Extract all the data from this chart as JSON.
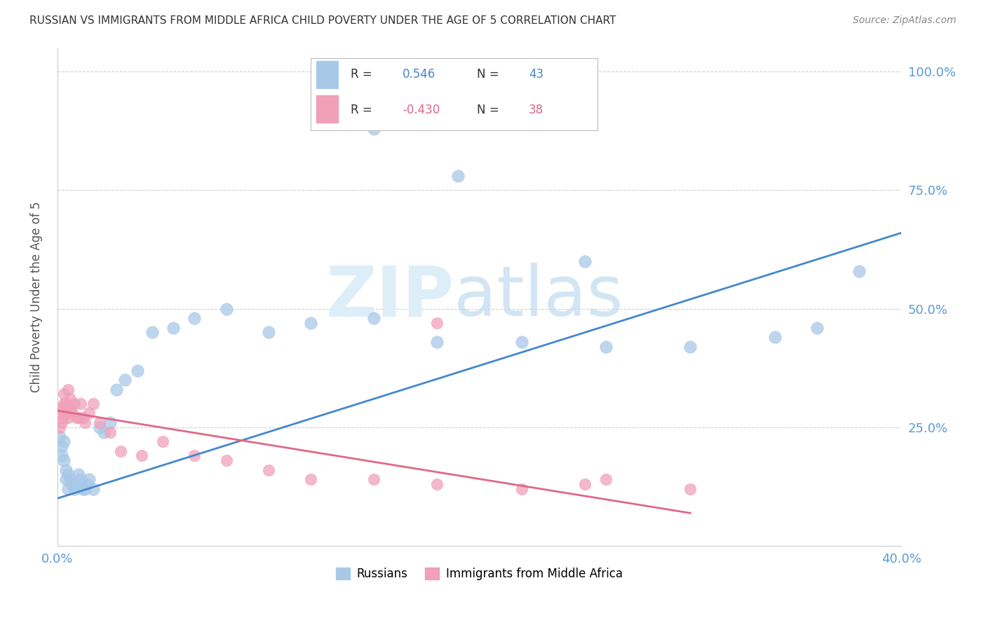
{
  "title": "RUSSIAN VS IMMIGRANTS FROM MIDDLE AFRICA CHILD POVERTY UNDER THE AGE OF 5 CORRELATION CHART",
  "source": "Source: ZipAtlas.com",
  "ylabel": "Child Poverty Under the Age of 5",
  "legend_russian_r": "0.546",
  "legend_russian_n": "43",
  "legend_immigrant_r": "-0.430",
  "legend_immigrant_n": "38",
  "blue_color": "#a8c8e8",
  "pink_color": "#f0a0b8",
  "blue_line_color": "#4488cc",
  "pink_line_color": "#e06888",
  "background": "#ffffff",
  "grid_color": "#cccccc",
  "axis_label_color": "#5b9bd5",
  "title_color": "#333333",
  "russians_x": [
    0.001,
    0.002,
    0.002,
    0.003,
    0.003,
    0.004,
    0.004,
    0.005,
    0.005,
    0.006,
    0.007,
    0.008,
    0.009,
    0.01,
    0.011,
    0.012,
    0.013,
    0.014,
    0.015,
    0.017,
    0.02,
    0.022,
    0.025,
    0.028,
    0.032,
    0.038,
    0.045,
    0.055,
    0.065,
    0.08,
    0.1,
    0.12,
    0.15,
    0.18,
    0.22,
    0.26,
    0.3,
    0.34,
    0.36,
    0.38,
    0.15,
    0.19,
    0.25
  ],
  "russians_y": [
    0.23,
    0.21,
    0.19,
    0.22,
    0.18,
    0.14,
    0.16,
    0.15,
    0.12,
    0.14,
    0.13,
    0.12,
    0.13,
    0.15,
    0.14,
    0.12,
    0.12,
    0.13,
    0.14,
    0.12,
    0.25,
    0.24,
    0.26,
    0.33,
    0.35,
    0.37,
    0.45,
    0.46,
    0.48,
    0.5,
    0.45,
    0.47,
    0.48,
    0.43,
    0.43,
    0.42,
    0.42,
    0.44,
    0.46,
    0.58,
    0.88,
    0.78,
    0.6
  ],
  "immigrants_x": [
    0.001,
    0.001,
    0.002,
    0.002,
    0.003,
    0.003,
    0.003,
    0.004,
    0.004,
    0.005,
    0.005,
    0.006,
    0.006,
    0.007,
    0.008,
    0.009,
    0.01,
    0.011,
    0.012,
    0.013,
    0.015,
    0.017,
    0.02,
    0.025,
    0.03,
    0.04,
    0.05,
    0.065,
    0.08,
    0.1,
    0.12,
    0.15,
    0.18,
    0.22,
    0.26,
    0.3,
    0.18,
    0.25
  ],
  "immigrants_y": [
    0.25,
    0.28,
    0.26,
    0.29,
    0.27,
    0.3,
    0.32,
    0.3,
    0.28,
    0.27,
    0.33,
    0.29,
    0.31,
    0.28,
    0.3,
    0.27,
    0.27,
    0.3,
    0.27,
    0.26,
    0.28,
    0.3,
    0.26,
    0.24,
    0.2,
    0.19,
    0.22,
    0.19,
    0.18,
    0.16,
    0.14,
    0.14,
    0.13,
    0.12,
    0.14,
    0.12,
    0.47,
    0.13
  ],
  "blue_intercept": 0.1,
  "blue_slope": 1.4,
  "pink_intercept": 0.285,
  "pink_slope": -0.72,
  "xlim": [
    0.0,
    0.4
  ],
  "ylim": [
    0.0,
    1.05
  ],
  "x_ticks": [
    0.0,
    0.05,
    0.1,
    0.15,
    0.2,
    0.25,
    0.3,
    0.35,
    0.4
  ],
  "y_ticks": [
    0.0,
    0.25,
    0.5,
    0.75,
    1.0
  ]
}
